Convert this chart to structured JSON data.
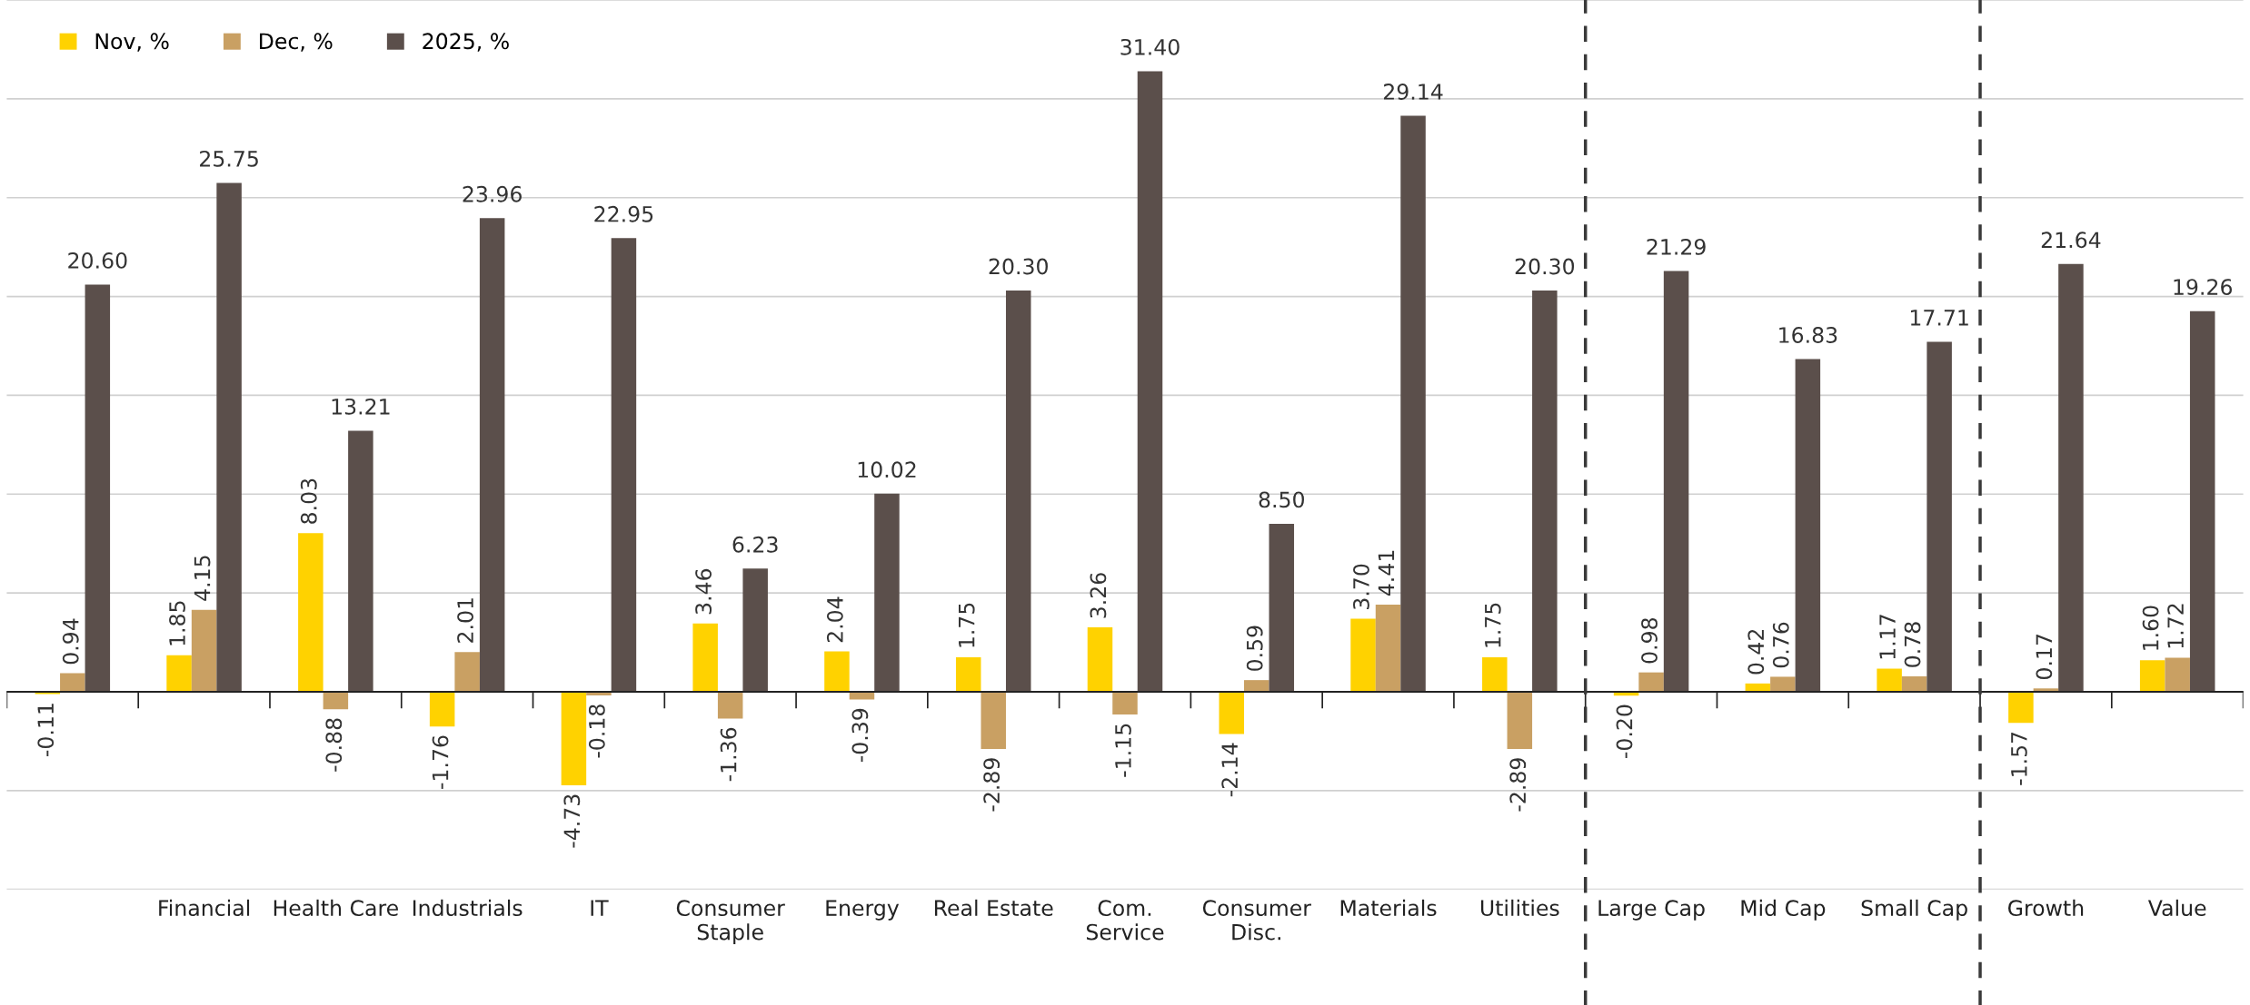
{
  "chart_data": {
    "type": "bar",
    "categories": [
      null,
      "Financial",
      "Health Care",
      "Industrials",
      "IT",
      "Consumer\nStaple",
      "Energy",
      "Real Estate",
      "Com.\nService",
      "Consumer\nDisc.",
      "Materials",
      "Utilities",
      "Large Cap",
      "Mid Cap",
      "Small Cap",
      "Growth",
      "Value"
    ],
    "series": [
      {
        "name": "Nov, %",
        "color": "#ffd200",
        "values": [
          -0.11,
          1.85,
          8.03,
          -1.76,
          -4.73,
          3.46,
          2.04,
          1.75,
          3.26,
          -2.14,
          3.7,
          1.75,
          -0.2,
          0.42,
          1.17,
          -1.57,
          1.6
        ],
        "value_labels": [
          "-0.11",
          "1.85",
          "8.03",
          "-1.76",
          "-4.73",
          "3.46",
          "2.04",
          "1.75",
          "3.26",
          "-2.14",
          "3.70",
          "1.75",
          "-0.20",
          "0.42",
          "1.17",
          "-1.57",
          "1.60"
        ]
      },
      {
        "name": "Dec, %",
        "color": "#c9a063",
        "values": [
          0.94,
          4.15,
          -0.88,
          2.01,
          -0.18,
          -1.36,
          -0.39,
          -2.89,
          -1.15,
          0.59,
          4.41,
          -2.89,
          0.98,
          0.76,
          0.78,
          0.17,
          1.72
        ],
        "value_labels": [
          "0.94",
          "4.15",
          "-0.88",
          "2.01",
          "-0.18",
          "-1.36",
          "-0.39",
          "-2.89",
          "-1.15",
          "0.59",
          "4.41",
          "-2.89",
          "0.98",
          "0.76",
          "0.78",
          "0.17",
          "1.72"
        ]
      },
      {
        "name": "2025, %",
        "color": "#5b4f4b",
        "values": [
          20.6,
          25.75,
          13.21,
          23.96,
          22.95,
          6.23,
          10.02,
          20.3,
          31.4,
          8.5,
          29.14,
          20.3,
          21.29,
          16.83,
          17.71,
          21.64,
          19.26
        ],
        "value_labels": [
          "20.60",
          "25.75",
          "13.21",
          "23.96",
          "22.95",
          "6.23",
          "10.02",
          "20.30",
          "31.40",
          "8.50",
          "29.14",
          "20.30",
          "21.29",
          "16.83",
          "17.71",
          "21.64",
          "19.26"
        ]
      }
    ],
    "ylim": [
      -10,
      35
    ],
    "yticks": [
      {
        "value": -10,
        "label": null
      },
      {
        "value": -5,
        "label": null
      },
      {
        "value": 0,
        "label": null
      },
      {
        "value": 5,
        "label": null
      },
      {
        "value": 10,
        "label": null
      },
      {
        "value": 15,
        "label": null
      },
      {
        "value": 20,
        "label": null
      },
      {
        "value": 25,
        "label": null
      },
      {
        "value": 30,
        "label": null
      },
      {
        "value": 35,
        "label": null
      }
    ],
    "grid": "y",
    "legend": "top left",
    "tick_labels": "x"
  }
}
